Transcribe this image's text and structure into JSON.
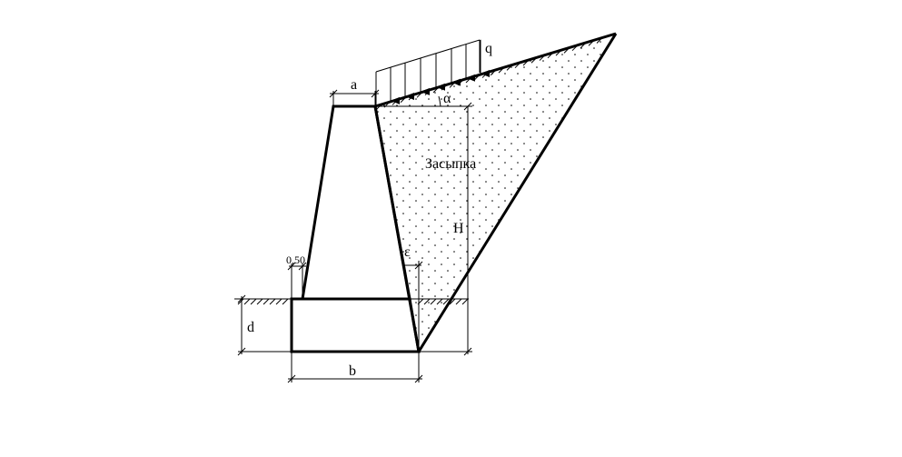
{
  "labels": {
    "load": "q",
    "top_width": "a",
    "slope_angle": "α",
    "backfill": "Засыпка",
    "height": "H",
    "back_face_angle": "ε",
    "offset": "0,50",
    "depth": "d",
    "base_width": "b"
  }
}
